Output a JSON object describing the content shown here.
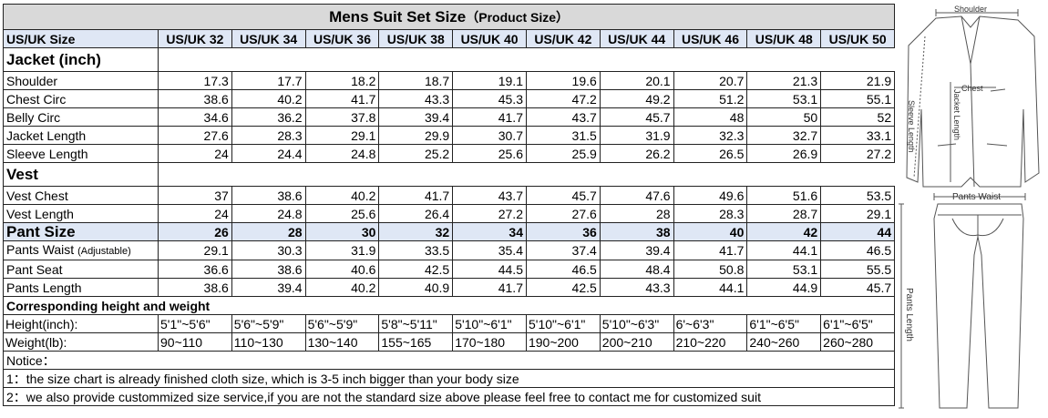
{
  "title": "Mens Suit Set Size",
  "subtitle": "（Product Size）",
  "header": {
    "label": "US/UK Size",
    "sizes": [
      "US/UK 32",
      "US/UK 34",
      "US/UK 36",
      "US/UK 38",
      "US/UK 40",
      "US/UK 42",
      "US/UK 44",
      "US/UK 46",
      "US/UK 48",
      "US/UK 50"
    ]
  },
  "jacket": {
    "label": "Jacket  (inch)",
    "rows": [
      {
        "name": "Shoulder",
        "values": [
          "17.3",
          "17.7",
          "18.2",
          "18.7",
          "19.1",
          "19.6",
          "20.1",
          "20.7",
          "21.3",
          "21.9"
        ]
      },
      {
        "name": "Chest Circ",
        "values": [
          "38.6",
          "40.2",
          "41.7",
          "43.3",
          "45.3",
          "47.2",
          "49.2",
          "51.2",
          "53.1",
          "55.1"
        ]
      },
      {
        "name": "Belly Circ",
        "values": [
          "34.6",
          "36.2",
          "37.8",
          "39.4",
          "41.7",
          "43.7",
          "45.7",
          "48",
          "50",
          "52"
        ]
      },
      {
        "name": "Jacket Length",
        "values": [
          "27.6",
          "28.3",
          "29.1",
          "29.9",
          "30.7",
          "31.5",
          "31.9",
          "32.3",
          "32.7",
          "33.1"
        ]
      },
      {
        "name": "Sleeve Length",
        "values": [
          "24",
          "24.4",
          "24.8",
          "25.2",
          "25.6",
          "25.9",
          "26.2",
          "26.5",
          "26.9",
          "27.2"
        ]
      }
    ]
  },
  "vest": {
    "label": "Vest",
    "rows": [
      {
        "name": "Vest Chest",
        "values": [
          "37",
          "38.6",
          "40.2",
          "41.7",
          "43.7",
          "45.7",
          "47.6",
          "49.6",
          "51.6",
          "53.5"
        ]
      },
      {
        "name": "Vest Length",
        "values": [
          "24",
          "24.8",
          "25.6",
          "26.4",
          "27.2",
          "27.6",
          "28",
          "28.3",
          "28.7",
          "29.1"
        ]
      }
    ]
  },
  "pant": {
    "label": "Pant Size",
    "sizes": [
      "26",
      "28",
      "30",
      "32",
      "34",
      "36",
      "38",
      "40",
      "42",
      "44"
    ],
    "rows": [
      {
        "name": "Pants Waist",
        "note": "(Adjustable)",
        "values": [
          "29.1",
          "30.3",
          "31.9",
          "33.5",
          "35.4",
          "37.4",
          "39.4",
          "41.7",
          "44.1",
          "46.5"
        ]
      },
      {
        "name": "Pant Seat",
        "note": "",
        "values": [
          "36.6",
          "38.6",
          "40.6",
          "42.5",
          "44.5",
          "46.5",
          "48.4",
          "50.8",
          "53.1",
          "55.5"
        ]
      },
      {
        "name": "Pants Length",
        "note": "",
        "values": [
          "38.6",
          "39.4",
          "40.2",
          "40.9",
          "41.7",
          "42.5",
          "43.3",
          "44.1",
          "44.9",
          "45.7"
        ]
      }
    ]
  },
  "corresponding": {
    "label": "Corresponding height and weight",
    "height": {
      "name": "Height(inch):",
      "values": [
        "5'1\"~5'6\"",
        "5'6\"~5'9\"",
        "5'6\"~5'9\"",
        "5'8\"~5'11\"",
        "5'10\"~6'1\"",
        "5'10\"~6'1\"",
        "5'10\"~6'3\"",
        "6'~6'3\"",
        "6'1\"~6'5\"",
        "6'1\"~6'5\""
      ]
    },
    "weight": {
      "name": "Weight(lb):",
      "values": [
        "90~110",
        "110~130",
        "130~140",
        "155~165",
        "170~180",
        "190~200",
        "200~210",
        "210~220",
        "240~260",
        "260~280"
      ]
    }
  },
  "notice": {
    "label": "Notice：",
    "lines": [
      "1：the size chart is already finished cloth size, which is 3-5 inch bigger than your body size",
      "2：we also provide custommized size service,if you are not the standard size above please feel free to contact me for customized suit"
    ]
  },
  "figure": {
    "jacket_labels": {
      "shoulder": "Shoulder",
      "chest": "Chest",
      "jacket_length": "Jacket Length",
      "sleeve_length": "Sleeve Length"
    },
    "pants_labels": {
      "waist": "Pants Waist",
      "length": "Pants Length"
    }
  }
}
